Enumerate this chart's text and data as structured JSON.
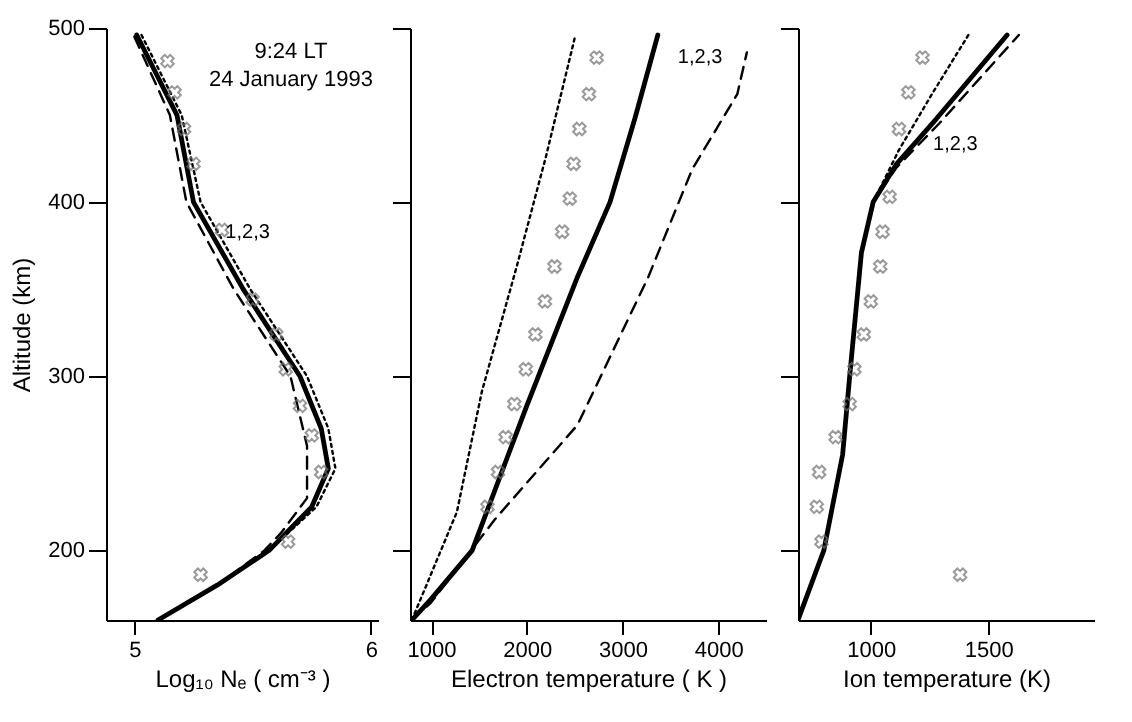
{
  "chart_data": [
    {
      "type": "line",
      "xlabel": "Log₁₀ Nₑ ( cm⁻³ )",
      "ylabel": "Altitude (km)",
      "xlim": [
        4.88,
        6.03
      ],
      "xticks": [
        5,
        6
      ],
      "ylim": [
        160,
        500
      ],
      "yticks": [
        200,
        300,
        400,
        500
      ],
      "grid": false,
      "annotations": [
        "9:24 LT",
        "24 January 1993",
        {
          "text": "1,2,3",
          "x": 5.3,
          "y": 390
        }
      ],
      "series": [
        {
          "color": "#000000",
          "line_style": "solid",
          "x": [
            5.01,
            5.18,
            5.25,
            5.46,
            5.7,
            5.79,
            5.82,
            5.75,
            5.57,
            5.35,
            5.1
          ],
          "values": [
            496,
            450,
            400,
            350,
            300,
            270,
            247,
            225,
            200,
            180,
            160
          ]
        },
        {
          "color": "#000000",
          "line_style": "dotted",
          "x": [
            5.03,
            5.2,
            5.28,
            5.49,
            5.73,
            5.82,
            5.85,
            5.77,
            5.57,
            5.35,
            5.1
          ],
          "values": [
            496,
            450,
            400,
            350,
            300,
            270,
            247,
            225,
            200,
            180,
            160
          ]
        },
        {
          "color": "#000000",
          "line_style": "dashed",
          "x": [
            5.0,
            5.15,
            5.22,
            5.42,
            5.66,
            5.73,
            5.73,
            5.62,
            5.55,
            5.35,
            5.1
          ],
          "values": [
            495,
            450,
            400,
            350,
            300,
            260,
            230,
            210,
            200,
            180,
            160
          ]
        },
        {
          "type": "scatter",
          "marker": "cross",
          "color": "#707070",
          "x": [
            5.14,
            5.17,
            5.21,
            5.25,
            5.37,
            5.5,
            5.6,
            5.64,
            5.7,
            5.75,
            5.79,
            5.65,
            5.28
          ],
          "values": [
            481,
            463,
            442,
            422,
            384,
            344,
            324,
            304,
            283,
            266,
            245,
            205,
            186
          ]
        }
      ]
    },
    {
      "type": "line",
      "xlabel": "Electron temperature ( K )",
      "xlim": [
        780,
        4500
      ],
      "xticks": [
        1000,
        2000,
        3000,
        4000
      ],
      "ylim": [
        160,
        500
      ],
      "yticks": [
        200,
        300,
        400,
        500
      ],
      "tick_labels": "x",
      "grid": false,
      "annotations": [
        {
          "text": "1,2,3",
          "x": 3370,
          "y": 490
        }
      ],
      "series": [
        {
          "color": "#000000",
          "line_style": "solid",
          "x": [
            800,
            1000,
            1430,
            2000,
            2530,
            2870,
            3130,
            3370
          ],
          "values": [
            160,
            172,
            200,
            283,
            357,
            400,
            448,
            496
          ]
        },
        {
          "color": "#000000",
          "line_style": "dotted",
          "x": [
            800,
            1270,
            1530,
            1900,
            2200,
            2500
          ],
          "values": [
            160,
            222,
            291,
            364,
            426,
            494
          ]
        },
        {
          "color": "#000000",
          "line_style": "dashed",
          "x": [
            800,
            1000,
            1670,
            2530,
            3270,
            3730,
            4200,
            4300
          ],
          "values": [
            160,
            170,
            218,
            272,
            357,
            419,
            462,
            486
          ]
        },
        {
          "type": "scatter",
          "marker": "cross",
          "color": "#707070",
          "x": [
            2730,
            2650,
            2550,
            2490,
            2450,
            2370,
            2290,
            2190,
            2090,
            1990,
            1870,
            1780,
            1700,
            1590
          ],
          "values": [
            483,
            462,
            442,
            422,
            402,
            383,
            363,
            343,
            324,
            304,
            284,
            265,
            245,
            225
          ]
        }
      ]
    },
    {
      "type": "line",
      "xlabel": "Ion temperature (K)",
      "xlim": [
        690,
        1950
      ],
      "xticks": [
        1000,
        1500
      ],
      "ylim": [
        160,
        500
      ],
      "yticks": [
        200,
        300,
        400,
        500
      ],
      "tick_labels": "x",
      "grid": false,
      "annotations": [
        {
          "text": "1,2,3",
          "x": 1180,
          "y": 440
        }
      ],
      "series": [
        {
          "color": "#000000",
          "line_style": "solid",
          "x": [
            690,
            800,
            880,
            910,
            960,
            1010,
            1110,
            1280,
            1580
          ],
          "values": [
            160,
            200,
            255,
            300,
            371,
            400,
            422,
            448,
            496
          ]
        },
        {
          "color": "#000000",
          "line_style": "dotted",
          "x": [
            690,
            800,
            880,
            910,
            960,
            1010,
            1120,
            1260,
            1420
          ],
          "values": [
            160,
            200,
            255,
            300,
            371,
            400,
            430,
            462,
            497
          ]
        },
        {
          "color": "#000000",
          "line_style": "dashed",
          "x": [
            690,
            800,
            880,
            910,
            960,
            1010,
            1110,
            1290,
            1630
          ],
          "values": [
            160,
            200,
            255,
            300,
            371,
            400,
            420,
            445,
            496
          ]
        },
        {
          "type": "scatter",
          "marker": "cross",
          "color": "#707070",
          "x": [
            1220,
            1160,
            1120,
            1080,
            1050,
            1040,
            1000,
            970,
            930,
            910,
            850,
            780,
            770,
            790,
            1380
          ],
          "values": [
            483,
            463,
            442,
            403,
            383,
            363,
            343,
            324,
            304,
            284,
            265,
            245,
            225,
            205,
            186
          ]
        }
      ]
    }
  ]
}
